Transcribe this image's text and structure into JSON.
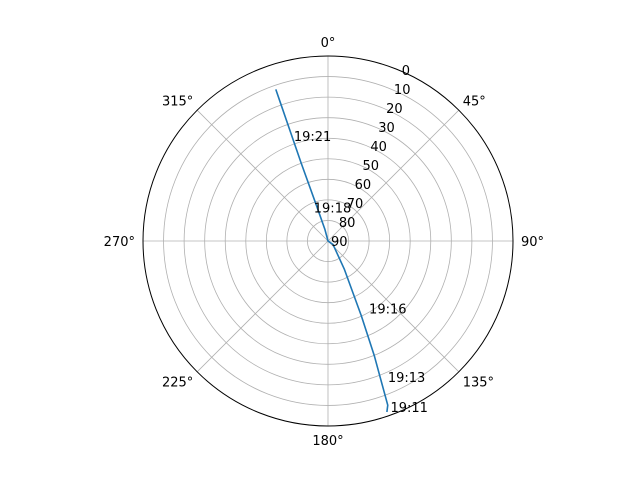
{
  "chart_data": {
    "type": "polar-line",
    "theta_direction": "clockwise",
    "theta_zero": "top",
    "radial_axis": {
      "inverted": true,
      "range": [
        90,
        0
      ],
      "ticks": [
        0,
        10,
        20,
        30,
        40,
        50,
        60,
        70,
        80,
        90
      ]
    },
    "angular_ticks": [
      {
        "deg": 0,
        "label": "0°"
      },
      {
        "deg": 45,
        "label": "45°"
      },
      {
        "deg": 90,
        "label": "90°"
      },
      {
        "deg": 135,
        "label": "135°"
      },
      {
        "deg": 180,
        "label": "180°"
      },
      {
        "deg": 225,
        "label": "225°"
      },
      {
        "deg": 270,
        "label": "270°"
      },
      {
        "deg": 315,
        "label": "315°"
      }
    ],
    "grid": true,
    "series": [
      {
        "color": "#1f77b4",
        "points": [
          {
            "az": 161,
            "el": 2
          },
          {
            "az": 160,
            "el": 5
          },
          {
            "az": 158,
            "el": 30
          },
          {
            "az": 156,
            "el": 50
          },
          {
            "az": 150,
            "el": 74
          },
          {
            "az": 125,
            "el": 87
          },
          {
            "az": 0,
            "el": 90
          },
          {
            "az": 345,
            "el": 84
          },
          {
            "az": 342,
            "el": 72
          },
          {
            "az": 341,
            "el": 50
          },
          {
            "az": 341,
            "el": 30
          },
          {
            "az": 341,
            "el": 18
          },
          {
            "az": 341,
            "el": 12
          }
        ]
      }
    ],
    "annotations": [
      {
        "label": "19:11",
        "az": 160,
        "el": 4
      },
      {
        "label": "19:13",
        "az": 157,
        "el": 18
      },
      {
        "label": "19:16",
        "az": 150,
        "el": 52
      },
      {
        "label": "19:18",
        "az": 334,
        "el": 72
      },
      {
        "label": "19:21",
        "az": 341,
        "el": 36
      }
    ]
  }
}
